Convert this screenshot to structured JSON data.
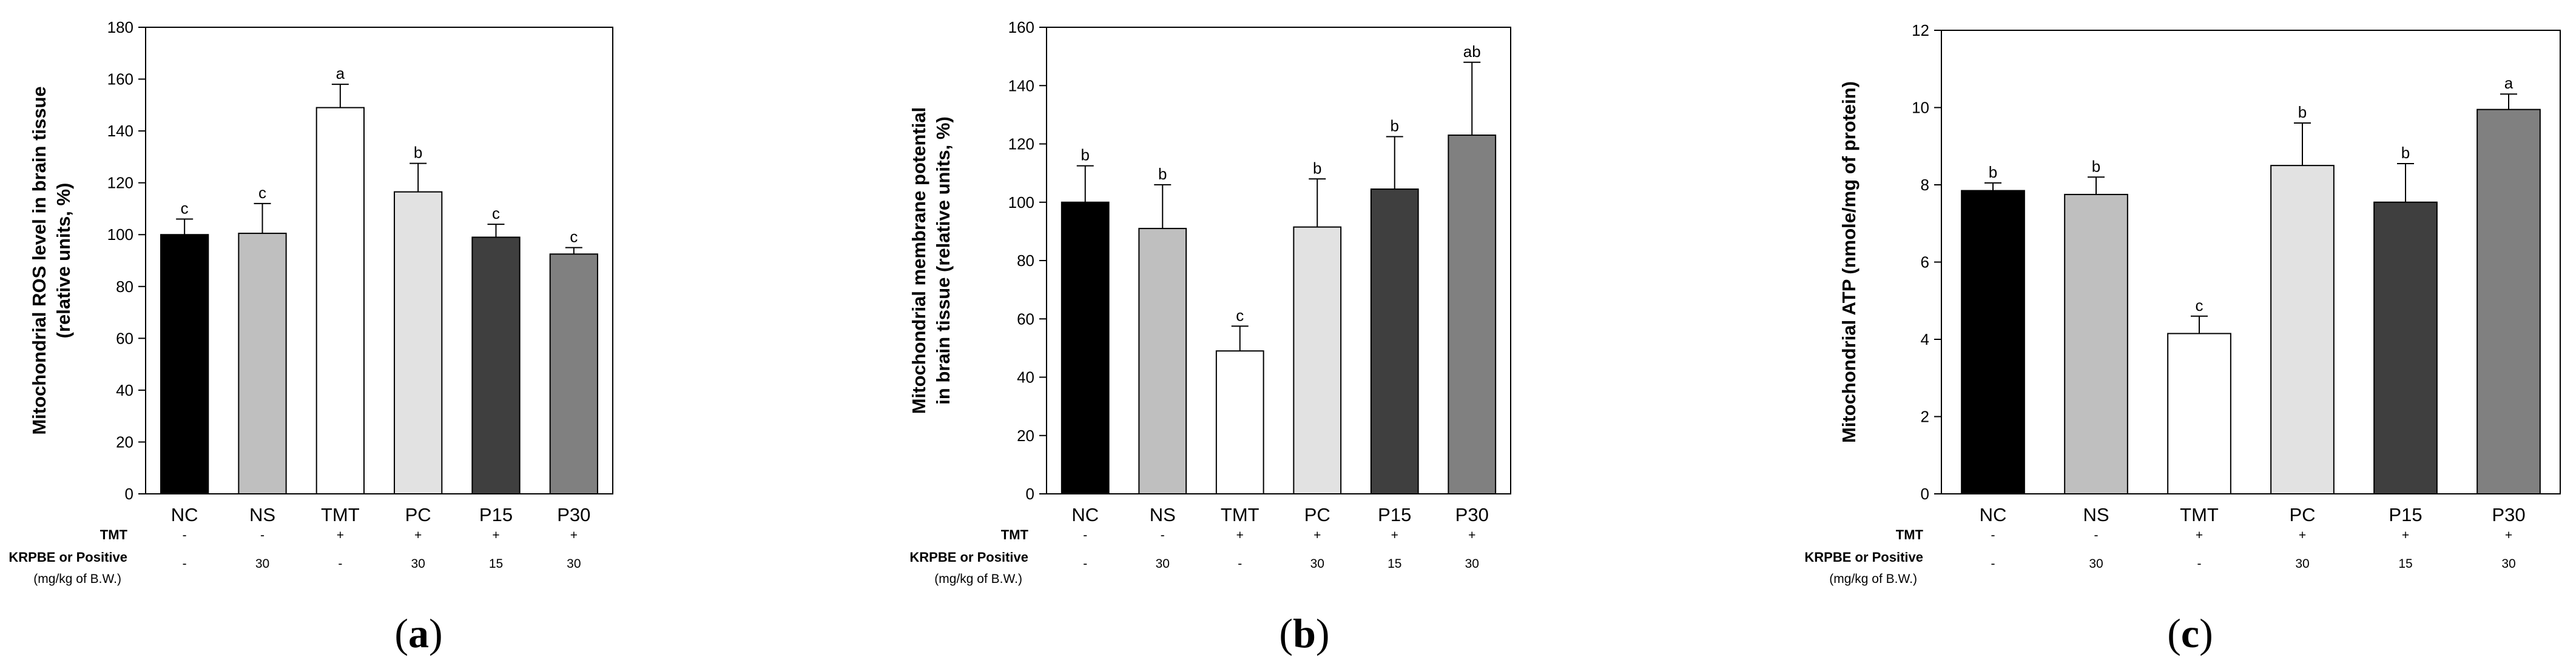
{
  "chart_data": [
    {
      "type": "bar",
      "panel_label": "a",
      "ylabel_lines": [
        "Mitochondrial ROS level in brain tissue",
        "(relative units, %)"
      ],
      "ylim": [
        0,
        180
      ],
      "yticks": [
        0,
        20,
        40,
        60,
        80,
        100,
        120,
        140,
        160,
        180
      ],
      "categories": [
        "NC",
        "NS",
        "TMT",
        "PC",
        "P15",
        "P30"
      ],
      "values": [
        100,
        100.5,
        149,
        116.5,
        99,
        92.5
      ],
      "errors": [
        6,
        11.5,
        9,
        11,
        5,
        2.5
      ],
      "significance": [
        "c",
        "c",
        "a",
        "b",
        "c",
        "c"
      ],
      "colors": [
        "#000000",
        "#bfbfbf",
        "#ffffff",
        "#e2e2e2",
        "#3f3f3f",
        "#808080"
      ]
    },
    {
      "type": "bar",
      "panel_label": "b",
      "ylabel_lines": [
        "Mitochondrial membrane potential",
        "in brain tissue (relative units, %)"
      ],
      "ylim": [
        0,
        160
      ],
      "yticks": [
        0,
        20,
        40,
        60,
        80,
        100,
        120,
        140,
        160
      ],
      "categories": [
        "NC",
        "NS",
        "TMT",
        "PC",
        "P15",
        "P30"
      ],
      "values": [
        100,
        91,
        49,
        91.5,
        104.5,
        123
      ],
      "errors": [
        12.5,
        15,
        8.5,
        16.5,
        18,
        25
      ],
      "significance": [
        "b",
        "b",
        "c",
        "b",
        "b",
        "ab"
      ],
      "colors": [
        "#000000",
        "#bfbfbf",
        "#ffffff",
        "#e2e2e2",
        "#3f3f3f",
        "#808080"
      ]
    },
    {
      "type": "bar",
      "panel_label": "c",
      "ylabel_lines": [
        "Mitochondrial ATP (nmole/mg of protein)"
      ],
      "ylim": [
        0,
        12
      ],
      "yticks": [
        0,
        2,
        4,
        6,
        8,
        10,
        12
      ],
      "categories": [
        "NC",
        "NS",
        "TMT",
        "PC",
        "P15",
        "P30"
      ],
      "values": [
        7.85,
        7.75,
        4.15,
        8.5,
        7.55,
        9.95
      ],
      "errors": [
        0.2,
        0.45,
        0.45,
        1.1,
        1.0,
        0.4
      ],
      "significance": [
        "b",
        "b",
        "c",
        "b",
        "b",
        "a"
      ],
      "colors": [
        "#000000",
        "#bfbfbf",
        "#ffffff",
        "#e2e2e2",
        "#3f3f3f",
        "#808080"
      ]
    }
  ],
  "treatment_table": {
    "row1_label": "TMT",
    "row1_values": [
      "-",
      "-",
      "+",
      "+",
      "+",
      "+"
    ],
    "row2_label": "KRPBE or Positive",
    "row2_sublabel": "(mg/kg of B.W.)",
    "row2_values": [
      "-",
      "30",
      "-",
      "30",
      "15",
      "30"
    ]
  },
  "panel_label_format": {
    "open": "(",
    "close": ")"
  }
}
